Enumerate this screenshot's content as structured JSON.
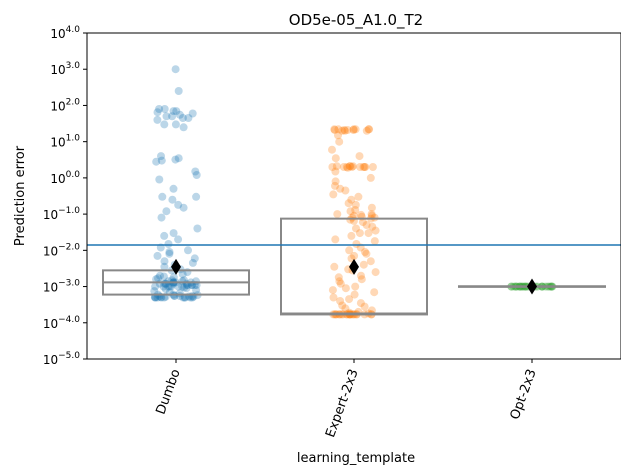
{
  "chart_data": {
    "type": "scatter",
    "subtype": "strip plot with box plots",
    "title": "OD5e-05_A1.0_T2",
    "xlabel": "learning_template",
    "ylabel": "Prediction error",
    "categories": [
      "Dumbo",
      "Expert-2x3",
      "Opt-2x3"
    ],
    "y_scale": "log",
    "ylim": [
      1e-05,
      10000.0
    ],
    "y_ticks": [
      {
        "exp": -5,
        "label_base": "10",
        "label_exp": "−5.0"
      },
      {
        "exp": -4,
        "label_base": "10",
        "label_exp": "−4.0"
      },
      {
        "exp": -3,
        "label_base": "10",
        "label_exp": "−3.0"
      },
      {
        "exp": -2,
        "label_base": "10",
        "label_exp": "−2.0"
      },
      {
        "exp": -1,
        "label_base": "10",
        "label_exp": "−1.0"
      },
      {
        "exp": 0,
        "label_base": "10",
        "label_exp": "0.0"
      },
      {
        "exp": 1,
        "label_base": "10",
        "label_exp": "1.0"
      },
      {
        "exp": 2,
        "label_base": "10",
        "label_exp": "2.0"
      },
      {
        "exp": 3,
        "label_base": "10",
        "label_exp": "3.0"
      },
      {
        "exp": 4,
        "label_base": "10",
        "label_exp": "4.0"
      }
    ],
    "reference_line": {
      "y": 0.014,
      "color": "#1f77b4"
    },
    "grid": false,
    "series": [
      {
        "category": "Dumbo",
        "color": "#1f77b4",
        "box": {
          "q1": 0.0006,
          "median": 0.0013,
          "q3": 0.0028
        },
        "mean": 0.0035,
        "points": [
          1000,
          250,
          80,
          80,
          70,
          70,
          65,
          60,
          55,
          50,
          50,
          45,
          45,
          40,
          30,
          30,
          25,
          4,
          3.5,
          3.2,
          3,
          2.8,
          1.5,
          1.2,
          0.9,
          0.5,
          0.3,
          0.3,
          0.25,
          0.18,
          0.15,
          0.12,
          0.08,
          0.04,
          0.03,
          0.025,
          0.02,
          0.015,
          0.012,
          0.01,
          0.009,
          0.008,
          0.007,
          0.006,
          0.005,
          0.0045,
          0.004,
          0.0035,
          0.003,
          0.0028,
          0.0025,
          0.0022,
          0.002,
          0.0019,
          0.0018,
          0.0017,
          0.0016,
          0.0015,
          0.0015,
          0.0014,
          0.0014,
          0.0014,
          0.0013,
          0.0013,
          0.0013,
          0.0013,
          0.0013,
          0.0012,
          0.0012,
          0.0012,
          0.0012,
          0.0012,
          0.0012,
          0.0011,
          0.0011,
          0.0011,
          0.0011,
          0.0011,
          0.0011,
          0.001,
          0.001,
          0.001,
          0.001,
          0.001,
          0.001,
          0.001,
          0.00095,
          0.0009,
          0.00085,
          0.0008,
          0.00075,
          0.0007,
          0.00065,
          0.0006,
          0.0006,
          0.00058,
          0.00056,
          0.00055,
          0.00055,
          0.00055,
          0.00054,
          0.00053,
          0.00052,
          0.00052,
          0.00051,
          0.00051,
          0.0005,
          0.0005,
          0.0005,
          0.0005,
          0.0005,
          0.0005,
          0.0005,
          0.0005,
          0.0005,
          0.0005
        ]
      },
      {
        "category": "Expert-2x3",
        "color": "#ff7f0e",
        "box": {
          "q1": 0.00017,
          "median": 0.00018,
          "q3": 0.075
        },
        "mean": 0.0035,
        "points": [
          22,
          22,
          22,
          22,
          22,
          22,
          21,
          21,
          21,
          21,
          20,
          20,
          20,
          15,
          10,
          6,
          4,
          3.5,
          2.1,
          2.1,
          2.1,
          2.1,
          2,
          2,
          2,
          2,
          2,
          2,
          2,
          2,
          2,
          1.9,
          1.5,
          1.0,
          0.8,
          0.6,
          0.5,
          0.45,
          0.35,
          0.3,
          0.25,
          0.2,
          0.18,
          0.15,
          0.13,
          0.12,
          0.1,
          0.1,
          0.095,
          0.09,
          0.09,
          0.085,
          0.08,
          0.08,
          0.075,
          0.07,
          0.065,
          0.06,
          0.05,
          0.045,
          0.04,
          0.035,
          0.03,
          0.03,
          0.025,
          0.02,
          0.018,
          0.015,
          0.012,
          0.01,
          0.009,
          0.008,
          0.007,
          0.006,
          0.005,
          0.004,
          0.0035,
          0.003,
          0.0028,
          0.0025,
          0.002,
          0.0018,
          0.0016,
          0.0014,
          0.0012,
          0.001,
          0.0009,
          0.0008,
          0.0007,
          0.0006,
          0.0005,
          0.00045,
          0.0004,
          0.00035,
          0.0003,
          0.00028,
          0.00025,
          0.00022,
          0.0002,
          0.00019,
          0.00018,
          0.00017,
          0.00017,
          0.00017,
          0.00017,
          0.00017,
          0.00017,
          0.00017,
          0.00017,
          0.00017,
          0.00017,
          0.00017,
          0.00017,
          0.00017,
          0.00017,
          0.00017,
          0.00017,
          0.00017,
          0.00017,
          0.00017,
          0.00017,
          0.00017,
          0.00017
        ]
      },
      {
        "category": "Opt-2x3",
        "color": "#2ca02c",
        "box": {
          "q1": 0.00098,
          "median": 0.001,
          "q3": 0.00102
        },
        "mean": 0.001,
        "points": [
          0.001,
          0.001,
          0.001,
          0.001,
          0.001,
          0.001,
          0.001,
          0.001,
          0.001,
          0.001,
          0.001,
          0.001,
          0.001,
          0.001,
          0.001,
          0.001,
          0.001,
          0.001,
          0.001,
          0.001,
          0.001,
          0.001,
          0.001,
          0.001,
          0.001,
          0.001,
          0.001,
          0.001,
          0.001,
          0.001
        ]
      }
    ]
  }
}
